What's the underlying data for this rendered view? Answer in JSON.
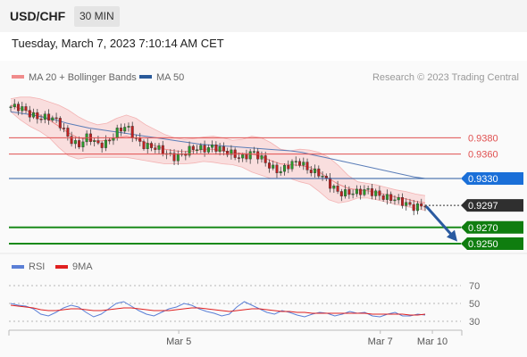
{
  "header": {
    "symbol": "USD/CHF",
    "interval": "30 MIN"
  },
  "timestamp": "Tuesday, March 7, 2023 7:10:14 AM CET",
  "legend_main": [
    {
      "label": "MA 20 + Bollinger Bands",
      "color": "#f08b8b"
    },
    {
      "label": "MA 50",
      "color": "#2a5a9a"
    }
  ],
  "legend_rsi": [
    {
      "label": "RSI",
      "color": "#5b7fd6"
    },
    {
      "label": "9MA",
      "color": "#e02020"
    }
  ],
  "credit": "Research © 2023 Trading Central",
  "colors": {
    "resistance": "#e05050",
    "pivot": "#2a5aa0",
    "support": "#1a8a1a",
    "current": "#333333",
    "bollinger_fill": "#f8d4d4",
    "ma20": "#f08b8b",
    "ma50": "#5a7db8",
    "candle_up": "#2a9a2a",
    "candle_down": "#c02020",
    "arrow": "#2a5aa0"
  },
  "chart_data": {
    "type": "candlestick",
    "price_range": [
      0.9238,
      0.9444
    ],
    "levels": [
      {
        "value": 0.938,
        "label": "0.9380",
        "kind": "resistance"
      },
      {
        "value": 0.936,
        "label": "0.9360",
        "kind": "resistance"
      },
      {
        "value": 0.933,
        "label": "0.9330",
        "kind": "pivot"
      },
      {
        "value": 0.9297,
        "label": "0.9297",
        "kind": "current"
      },
      {
        "value": 0.927,
        "label": "0.9270",
        "kind": "support"
      },
      {
        "value": 0.925,
        "label": "0.9250",
        "kind": "support"
      }
    ],
    "price_path": [
      0.9418,
      0.9415,
      0.941,
      0.9406,
      0.9404,
      0.9398,
      0.9382,
      0.937,
      0.938,
      0.9372,
      0.9376,
      0.9386,
      0.9393,
      0.938,
      0.937,
      0.9366,
      0.9362,
      0.9358,
      0.936,
      0.9366,
      0.9368,
      0.937,
      0.9362,
      0.936,
      0.9357,
      0.9362,
      0.9353,
      0.9345,
      0.934,
      0.9346,
      0.935,
      0.9342,
      0.9336,
      0.9322,
      0.9314,
      0.9314,
      0.9311,
      0.9315,
      0.9313,
      0.9306,
      0.9302,
      0.93,
      0.9296,
      0.9297
    ],
    "ma20": [
      0.942,
      0.9416,
      0.9412,
      0.9408,
      0.9402,
      0.9394,
      0.9386,
      0.938,
      0.9378,
      0.9376,
      0.9377,
      0.938,
      0.9382,
      0.9379,
      0.9374,
      0.937,
      0.9366,
      0.9364,
      0.9363,
      0.9364,
      0.9366,
      0.9366,
      0.9364,
      0.9362,
      0.9361,
      0.936,
      0.9357,
      0.9352,
      0.9348,
      0.9347,
      0.9346,
      0.9344,
      0.9338,
      0.933,
      0.9323,
      0.9318,
      0.9316,
      0.9315,
      0.9313,
      0.931,
      0.9307,
      0.9305,
      0.9302,
      0.93
    ],
    "bollinger_upper": [
      0.9428,
      0.943,
      0.943,
      0.9428,
      0.9424,
      0.942,
      0.9414,
      0.9406,
      0.94,
      0.9396,
      0.9398,
      0.9404,
      0.9408,
      0.9404,
      0.9396,
      0.939,
      0.9384,
      0.938,
      0.9378,
      0.9379,
      0.9381,
      0.9382,
      0.938,
      0.9377,
      0.9378,
      0.9382,
      0.938,
      0.9374,
      0.9366,
      0.9364,
      0.9366,
      0.9365,
      0.9362,
      0.9356,
      0.9346,
      0.9334,
      0.9326,
      0.9324,
      0.9322,
      0.9319,
      0.9316,
      0.9314,
      0.9311,
      0.9309
    ],
    "bollinger_lower": [
      0.9412,
      0.9402,
      0.9394,
      0.9388,
      0.938,
      0.9368,
      0.9358,
      0.9354,
      0.9356,
      0.9356,
      0.9356,
      0.9356,
      0.9356,
      0.9354,
      0.9352,
      0.935,
      0.9348,
      0.9348,
      0.9348,
      0.9349,
      0.9351,
      0.935,
      0.9348,
      0.9347,
      0.9344,
      0.9338,
      0.9334,
      0.933,
      0.933,
      0.933,
      0.9326,
      0.9323,
      0.9314,
      0.9304,
      0.93,
      0.9302,
      0.9306,
      0.9306,
      0.9304,
      0.9301,
      0.9298,
      0.9296,
      0.9293,
      0.9291
    ],
    "ma50": [
      0.9412,
      0.941,
      0.9408,
      0.9405,
      0.9402,
      0.9398,
      0.9395,
      0.9392,
      0.939,
      0.9388,
      0.9386,
      0.9384,
      0.9382,
      0.938,
      0.9378,
      0.9376,
      0.9374,
      0.9372,
      0.9371,
      0.937,
      0.9369,
      0.9368,
      0.9367,
      0.9366,
      0.9365,
      0.9364,
      0.9362,
      0.9359,
      0.9356,
      0.9353,
      0.935,
      0.9347,
      0.9344,
      0.9341,
      0.9338,
      0.9335,
      0.9332,
      0.933
    ],
    "forecast_arrow": {
      "from": 0.9297,
      "to": 0.9256
    },
    "rsi_axis": {
      "ticks": [
        70,
        50,
        30
      ],
      "range": [
        20,
        80
      ]
    },
    "rsi": [
      50,
      48,
      47,
      44,
      38,
      36,
      40,
      45,
      48,
      46,
      40,
      35,
      38,
      44,
      50,
      52,
      47,
      42,
      38,
      36,
      40,
      44,
      46,
      50,
      48,
      44,
      41,
      39,
      36,
      38,
      46,
      52,
      48,
      44,
      40,
      38,
      42,
      40,
      37,
      35,
      38,
      40,
      39,
      36,
      38,
      41,
      39,
      40,
      36,
      35,
      38,
      40,
      36,
      36,
      38,
      37
    ],
    "rsi_9ma": [
      48,
      47,
      46,
      45,
      43,
      42,
      42,
      43,
      44,
      44,
      43,
      42,
      42,
      43,
      44,
      45,
      45,
      44,
      43,
      42,
      42,
      42,
      43,
      44,
      45,
      45,
      44,
      43,
      42,
      41,
      42,
      43,
      44,
      44,
      43,
      42,
      41,
      41,
      40,
      40,
      39,
      39,
      39,
      39,
      39,
      39,
      39,
      39,
      38,
      38,
      38,
      38,
      38,
      37,
      37,
      38
    ],
    "x_labels": [
      "Mar 5",
      "Mar 7",
      "Mar 10"
    ],
    "x_label_fractions": [
      0.375,
      0.82,
      0.935
    ]
  }
}
